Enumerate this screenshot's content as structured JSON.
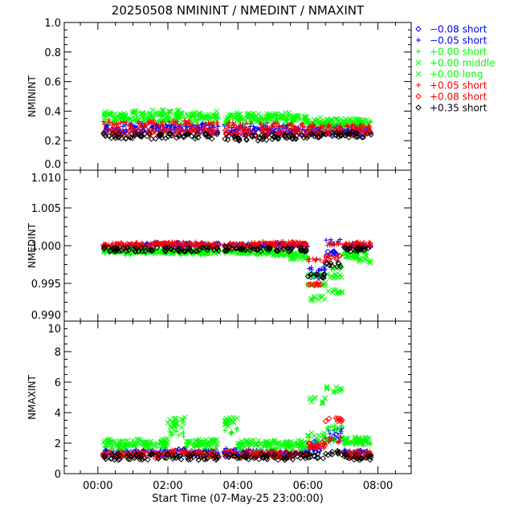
{
  "chart_data": {
    "type": "scatter",
    "title": "20250508  NMININT  /  NMEDINT  /  NMAXINT",
    "xlabel": "Start Time (07-May-25 23:00:00)",
    "x_unit": "hours",
    "xlim": [
      -0.96,
      8.95
    ],
    "x_ticks": [
      0,
      2,
      4,
      6,
      8
    ],
    "x_tick_labels": [
      "00:00",
      "02:00",
      "04:00",
      "06:00",
      "08:00"
    ],
    "legend": {
      "placement": "outside-right-top",
      "entries": [
        {
          "label": "−0.08 short",
          "color": "#0000ff",
          "marker": "diamond"
        },
        {
          "label": "−0.05 short",
          "color": "#0000ff",
          "marker": "plus"
        },
        {
          "label": "+0.00 short",
          "color": "#00ff00",
          "marker": "plus"
        },
        {
          "label": "+0.00 middle",
          "color": "#00ff00",
          "marker": "cross"
        },
        {
          "label": "+0.00 long",
          "color": "#00ff00",
          "marker": "cross"
        },
        {
          "label": "+0.05 short",
          "color": "#ff0000",
          "marker": "plus"
        },
        {
          "label": "+0.08 short",
          "color": "#ff0000",
          "marker": "diamond"
        },
        {
          "label": "+0.35 short",
          "color": "#000000",
          "marker": "diamond"
        }
      ]
    },
    "x": [
      0.25,
      0.75,
      1.25,
      1.75,
      2.25,
      2.75,
      3.25,
      3.75,
      4.25,
      4.75,
      5.25,
      5.75,
      6.25,
      6.75,
      7.25,
      7.6
    ],
    "panels": [
      {
        "ylabel": "NMININT",
        "ylim": [
          0.0,
          1.0
        ],
        "y_ticks": [
          0.0,
          0.2,
          0.4,
          0.6,
          0.8,
          1.0
        ],
        "y_tick_labels": [
          "0.0",
          "0.2",
          "0.4",
          "0.6",
          "0.8",
          "1.0"
        ],
        "series": [
          [
            0.27,
            0.26,
            0.27,
            0.28,
            0.27,
            0.27,
            0.27,
            0.26,
            0.26,
            0.26,
            0.26,
            0.26,
            0.26,
            0.26,
            0.26,
            0.26
          ],
          [
            0.3,
            0.29,
            0.3,
            0.3,
            0.3,
            0.3,
            0.3,
            0.29,
            0.29,
            0.29,
            0.29,
            0.29,
            0.29,
            0.29,
            0.29,
            0.29
          ],
          [
            0.34,
            0.33,
            0.34,
            0.34,
            0.34,
            0.34,
            0.34,
            0.33,
            0.33,
            0.33,
            0.33,
            0.33,
            0.3,
            0.3,
            0.31,
            0.31
          ],
          [
            0.37,
            0.36,
            0.36,
            0.37,
            0.37,
            0.37,
            0.36,
            0.36,
            0.36,
            0.35,
            0.35,
            0.35,
            0.32,
            0.32,
            0.32,
            0.32
          ],
          [
            0.38,
            0.38,
            0.39,
            0.39,
            0.39,
            0.38,
            0.38,
            0.37,
            0.37,
            0.37,
            0.37,
            0.36,
            0.34,
            0.33,
            0.33,
            0.33
          ],
          [
            0.32,
            0.31,
            0.31,
            0.32,
            0.32,
            0.32,
            0.31,
            0.31,
            0.3,
            0.3,
            0.3,
            0.3,
            0.29,
            0.29,
            0.29,
            0.29
          ],
          [
            0.26,
            0.25,
            0.26,
            0.26,
            0.26,
            0.26,
            0.26,
            0.25,
            0.25,
            0.25,
            0.25,
            0.25,
            0.25,
            0.26,
            0.25,
            0.26
          ],
          [
            0.23,
            0.23,
            0.23,
            0.23,
            0.23,
            0.23,
            0.23,
            0.22,
            0.22,
            0.22,
            0.22,
            0.23,
            0.23,
            0.24,
            0.24,
            0.24
          ]
        ]
      },
      {
        "ylabel": "NMEDINT",
        "ylim": [
          0.99,
          1.01
        ],
        "y_ticks": [
          0.99,
          0.995,
          1.0,
          1.005,
          1.01
        ],
        "y_tick_labels": [
          "0.990",
          "0.995",
          "1.000",
          "1.005",
          "1.010"
        ],
        "series": [
          [
            0.9997,
            0.9999,
            1.0,
            1.0001,
            1.0001,
            1.0,
            1.0,
            0.9999,
            1.0,
            1.0,
            1.0001,
            1.0001,
            0.996,
            0.999,
            1.0,
            1.0
          ],
          [
            0.9998,
            0.9999,
            1.0,
            1.0001,
            1.0001,
            1.0001,
            1.0,
            1.0,
            1.0,
            1.0001,
            1.0001,
            1.0001,
            0.997,
            1.0005,
            1.0,
            1.0
          ],
          [
            0.9992,
            0.999,
            0.9991,
            0.9991,
            0.999,
            0.999,
            0.999,
            0.9992,
            0.9991,
            0.999,
            0.9989,
            0.9988,
            0.996,
            0.997,
            0.999,
            0.999
          ],
          [
            0.9994,
            0.9993,
            0.9993,
            0.9992,
            0.9992,
            0.9992,
            0.9992,
            0.9993,
            0.9992,
            0.9991,
            0.999,
            0.9985,
            0.995,
            0.994,
            0.9985,
            0.998
          ],
          [
            0.9995,
            0.9994,
            0.9994,
            0.9993,
            0.9993,
            0.9993,
            0.9993,
            0.9994,
            0.9993,
            0.9992,
            0.9991,
            0.9988,
            0.993,
            0.996,
            0.9988,
            0.9985
          ],
          [
            1.0001,
            1.0002,
            1.0002,
            1.0003,
            1.0003,
            1.0002,
            1.0002,
            1.0002,
            1.0002,
            1.0003,
            1.0003,
            1.0003,
            0.998,
            1.0003,
            1.0002,
            1.0002
          ],
          [
            0.9999,
            1.0,
            1.0,
            1.0001,
            1.0001,
            1.0001,
            1.0,
            1.0,
            1.0,
            1.0001,
            1.0001,
            1.0002,
            0.995,
            0.9985,
            1.0,
            1.0001
          ],
          [
            0.9995,
            0.9995,
            0.9995,
            0.9995,
            0.9995,
            0.9995,
            0.9995,
            0.9996,
            0.9996,
            0.9995,
            0.9995,
            0.9995,
            0.996,
            0.9975,
            0.9995,
            0.9995
          ]
        ]
      },
      {
        "ylabel": "NMAXINT",
        "ylim": [
          0,
          10
        ],
        "y_ticks": [
          0,
          2,
          4,
          6,
          8,
          10
        ],
        "y_tick_labels": [
          "0",
          "2",
          "4",
          "6",
          "8",
          "10"
        ],
        "series": [
          [
            1.3,
            1.3,
            1.3,
            1.3,
            1.4,
            1.3,
            1.3,
            1.4,
            1.3,
            1.3,
            1.3,
            1.3,
            1.6,
            2.4,
            1.3,
            1.3
          ],
          [
            1.4,
            1.4,
            1.4,
            1.4,
            1.5,
            1.4,
            1.4,
            1.5,
            1.4,
            1.4,
            1.4,
            1.4,
            2.0,
            2.8,
            1.4,
            1.4
          ],
          [
            1.8,
            1.7,
            1.8,
            1.8,
            2.6,
            1.8,
            1.8,
            2.8,
            1.8,
            1.7,
            1.7,
            1.7,
            2.2,
            3.0,
            2.0,
            2.0
          ],
          [
            2.0,
            1.9,
            2.0,
            2.0,
            3.2,
            2.0,
            2.0,
            3.3,
            1.9,
            1.9,
            1.9,
            1.9,
            2.6,
            2.2,
            2.1,
            2.1
          ],
          [
            2.1,
            2.0,
            2.1,
            2.1,
            3.5,
            2.1,
            2.1,
            3.5,
            2.0,
            2.0,
            2.0,
            2.0,
            4.8,
            5.5,
            2.2,
            2.2
          ],
          [
            1.3,
            1.3,
            1.3,
            1.3,
            1.4,
            1.3,
            1.3,
            1.4,
            1.3,
            1.3,
            1.3,
            1.3,
            1.8,
            2.2,
            1.3,
            1.3
          ],
          [
            1.2,
            1.2,
            1.2,
            1.2,
            1.3,
            1.2,
            1.2,
            1.3,
            1.2,
            1.2,
            1.2,
            1.2,
            1.9,
            3.5,
            1.2,
            1.2
          ],
          [
            1.1,
            1.1,
            1.1,
            1.1,
            1.1,
            1.1,
            1.1,
            1.1,
            1.1,
            1.1,
            1.1,
            1.1,
            1.2,
            1.3,
            1.1,
            1.1
          ]
        ]
      }
    ]
  }
}
